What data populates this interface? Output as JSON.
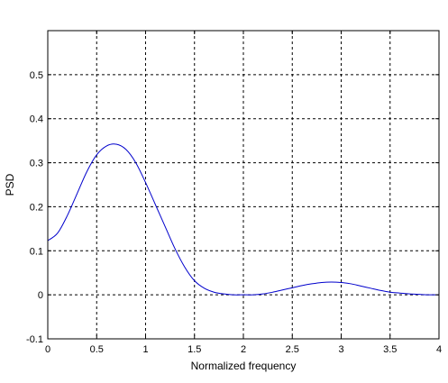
{
  "chart_data": {
    "type": "line",
    "title": "",
    "xlabel": "Normalized frequency",
    "ylabel": "PSD",
    "xlim": [
      0,
      4
    ],
    "ylim": [
      -0.1,
      0.6
    ],
    "grid": true,
    "grid_style": "dashed",
    "x_ticks": [
      0,
      0.5,
      1,
      1.5,
      2,
      2.5,
      3,
      3.5,
      4
    ],
    "x_tick_labels": [
      "0",
      "0.5",
      "1",
      "1.5",
      "2",
      "2.5",
      "3",
      "3.5",
      "4"
    ],
    "y_ticks": [
      -0.1,
      0,
      0.1,
      0.2,
      0.3,
      0.4,
      0.5
    ],
    "y_tick_labels": [
      "-0.1",
      "0",
      "0.1",
      "0.2",
      "0.3",
      "0.4",
      "0.5"
    ],
    "series": [
      {
        "color": "#0000cc",
        "x": [
          0,
          0.1,
          0.2,
          0.3,
          0.4,
          0.5,
          0.6,
          0.7,
          0.8,
          0.9,
          1.0,
          1.1,
          1.2,
          1.3,
          1.4,
          1.5,
          1.6,
          1.7,
          1.8,
          1.9,
          2.0,
          2.1,
          2.2,
          2.3,
          2.4,
          2.5,
          2.6,
          2.7,
          2.8,
          2.9,
          3.0,
          3.1,
          3.2,
          3.3,
          3.4,
          3.5,
          3.6,
          3.7,
          3.8,
          3.9,
          4.0
        ],
        "values": [
          0.123,
          0.14,
          0.18,
          0.23,
          0.28,
          0.318,
          0.338,
          0.342,
          0.33,
          0.3,
          0.255,
          0.205,
          0.155,
          0.105,
          0.063,
          0.032,
          0.015,
          0.006,
          0.002,
          0.0,
          0.0,
          0.0,
          0.002,
          0.006,
          0.011,
          0.016,
          0.021,
          0.025,
          0.028,
          0.029,
          0.028,
          0.025,
          0.02,
          0.015,
          0.01,
          0.006,
          0.004,
          0.002,
          0.001,
          0.0,
          0.0
        ]
      }
    ]
  }
}
